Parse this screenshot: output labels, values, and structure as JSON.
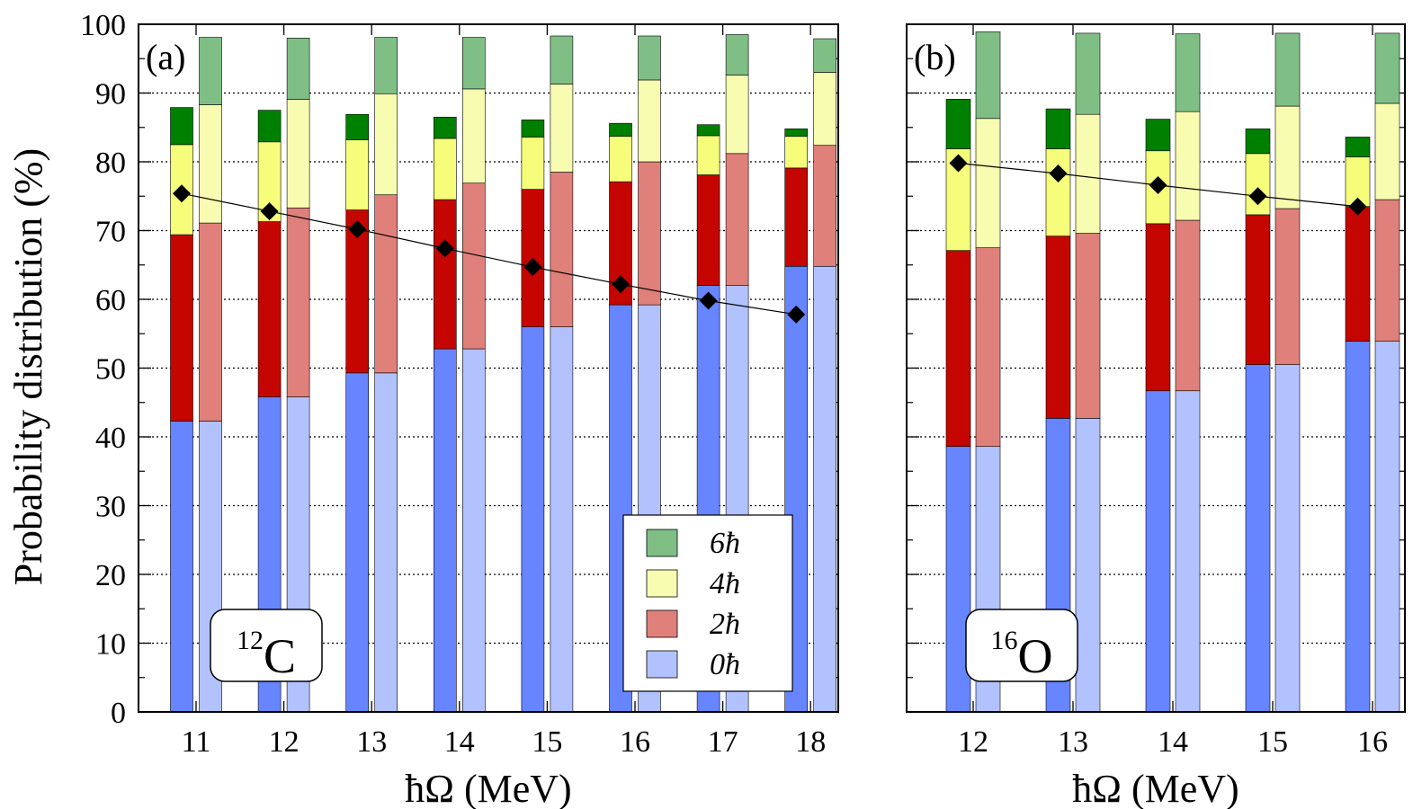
{
  "figure": {
    "ylabel": "Probability distribution (%)",
    "legend": {
      "position": "bottom-right of panel (a)",
      "entries": [
        {
          "label": "6ħ",
          "color": "#7fbf86"
        },
        {
          "label": "4ħ",
          "color": "#f8fcb0"
        },
        {
          "label": "2ħ",
          "color": "#e0807b"
        },
        {
          "label": "0ħ",
          "color": "#b2c2ff"
        }
      ]
    },
    "colors": {
      "dark": {
        "0": "#6685ff",
        "2": "#c40500",
        "4": "#f5fd7a",
        "6": "#008000"
      },
      "light": {
        "0": "#b2c2ff",
        "2": "#e0807b",
        "4": "#f8fcb0",
        "6": "#7fbf86"
      },
      "marker": "#000000"
    }
  },
  "chart_data": [
    {
      "type": "bar",
      "stacked": true,
      "panel_label": "(a)",
      "nucleus": {
        "mass": "12",
        "symbol": "C"
      },
      "xlabel": "ħΩ (MeV)",
      "ylabel": "Probability distribution (%)",
      "ylim": [
        0,
        100
      ],
      "yticks": [
        0,
        10,
        20,
        30,
        40,
        50,
        60,
        70,
        80,
        90,
        100
      ],
      "grid": "horizontal dotted",
      "categories": [
        "11",
        "12",
        "13",
        "14",
        "15",
        "16",
        "17",
        "18"
      ],
      "series_dark": [
        {
          "name": "0ħ",
          "values": [
            42.3,
            45.8,
            49.3,
            52.8,
            56.0,
            59.2,
            62.0,
            64.8
          ]
        },
        {
          "name": "2ħ",
          "values": [
            27.1,
            25.5,
            23.7,
            21.7,
            20.0,
            17.9,
            16.1,
            14.3
          ]
        },
        {
          "name": "4ħ",
          "values": [
            13.1,
            11.6,
            10.2,
            8.9,
            7.6,
            6.6,
            5.7,
            4.6
          ]
        },
        {
          "name": "6ħ",
          "values": [
            5.4,
            4.6,
            3.7,
            3.1,
            2.5,
            1.9,
            1.6,
            1.1
          ]
        }
      ],
      "series_light": [
        {
          "name": "0ħ",
          "values": [
            42.3,
            45.8,
            49.3,
            52.8,
            56.0,
            59.2,
            62.0,
            64.8
          ]
        },
        {
          "name": "2ħ",
          "values": [
            28.8,
            27.5,
            25.9,
            24.1,
            22.5,
            20.8,
            19.2,
            17.6
          ]
        },
        {
          "name": "4ħ",
          "values": [
            17.2,
            15.8,
            14.7,
            13.7,
            12.8,
            11.9,
            11.4,
            10.6
          ]
        },
        {
          "name": "6ħ",
          "values": [
            9.8,
            8.9,
            8.2,
            7.5,
            7.0,
            6.4,
            5.9,
            4.9
          ]
        }
      ],
      "line_values": [
        75.4,
        72.8,
        70.2,
        67.4,
        64.7,
        62.2,
        59.8,
        57.8
      ]
    },
    {
      "type": "bar",
      "stacked": true,
      "panel_label": "(b)",
      "nucleus": {
        "mass": "16",
        "symbol": "O"
      },
      "xlabel": "ħΩ (MeV)",
      "ylim": [
        0,
        100
      ],
      "yticks": [
        0,
        10,
        20,
        30,
        40,
        50,
        60,
        70,
        80,
        90,
        100
      ],
      "grid": "horizontal dotted",
      "categories": [
        "12",
        "13",
        "14",
        "15",
        "16"
      ],
      "series_dark": [
        {
          "name": "0ħ",
          "values": [
            38.6,
            42.7,
            46.7,
            50.5,
            53.9
          ]
        },
        {
          "name": "2ħ",
          "values": [
            28.5,
            26.5,
            24.3,
            21.8,
            19.6
          ]
        },
        {
          "name": "4ħ",
          "values": [
            14.8,
            12.7,
            10.6,
            8.9,
            7.2
          ]
        },
        {
          "name": "6ħ",
          "values": [
            7.2,
            5.8,
            4.6,
            3.6,
            2.9
          ]
        }
      ],
      "series_light": [
        {
          "name": "0ħ",
          "values": [
            38.6,
            42.7,
            46.7,
            50.5,
            53.9
          ]
        },
        {
          "name": "2ħ",
          "values": [
            28.9,
            26.9,
            24.8,
            22.7,
            20.6
          ]
        },
        {
          "name": "4ħ",
          "values": [
            18.8,
            17.3,
            15.8,
            14.9,
            14.0
          ]
        },
        {
          "name": "6ħ",
          "values": [
            12.6,
            11.8,
            11.3,
            10.6,
            10.2
          ]
        }
      ],
      "line_values": [
        79.8,
        78.3,
        76.6,
        75.0,
        73.5
      ]
    }
  ]
}
